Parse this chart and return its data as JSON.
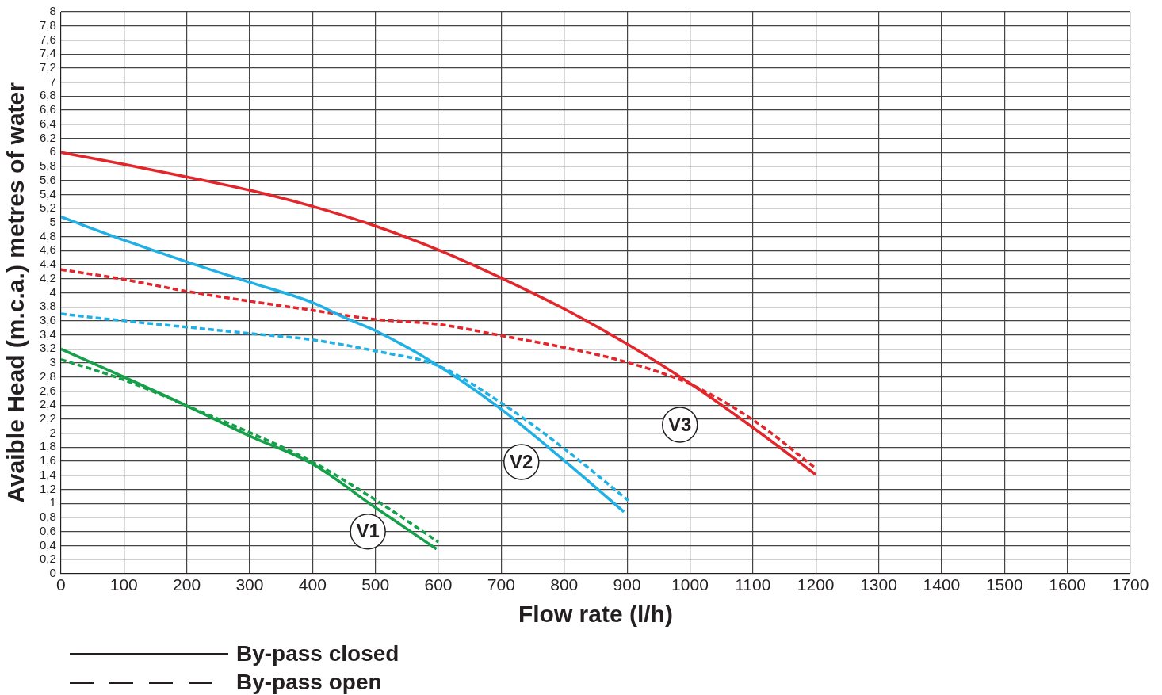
{
  "chart_data": {
    "type": "line",
    "xlabel": "Flow rate (l/h)",
    "ylabel": "Avaible Head (m.c.a.) metres of water",
    "xlim": [
      0,
      1700
    ],
    "xticks": [
      0,
      100,
      200,
      300,
      400,
      500,
      600,
      700,
      800,
      900,
      1000,
      1100,
      1200,
      1300,
      1400,
      1500,
      1600,
      1700
    ],
    "ylim": [
      0,
      8
    ],
    "yticks": [
      0,
      {
        "value": 0.2,
        "label": "0,2"
      },
      {
        "value": 0.4,
        "label": "0,4"
      },
      {
        "value": 0.6,
        "label": "0,6"
      },
      {
        "value": 0.8,
        "label": "0,8"
      },
      1,
      {
        "value": 1.2,
        "label": "1,2"
      },
      {
        "value": 1.4,
        "label": "1,4"
      },
      {
        "value": 1.6,
        "label": "1,6"
      },
      {
        "value": 1.8,
        "label": "1,8"
      },
      2,
      {
        "value": 2.2,
        "label": "2,2"
      },
      {
        "value": 2.4,
        "label": "2,4"
      },
      {
        "value": 2.6,
        "label": "2,6"
      },
      {
        "value": 2.8,
        "label": "2,8"
      },
      3,
      {
        "value": 3.2,
        "label": "3,2"
      },
      {
        "value": 3.4,
        "label": "3,4"
      },
      {
        "value": 3.6,
        "label": "3,6"
      },
      {
        "value": 3.8,
        "label": "3,8"
      },
      4,
      {
        "value": 4.2,
        "label": "4,2"
      },
      {
        "value": 4.4,
        "label": "4,4"
      },
      {
        "value": 4.6,
        "label": "4,6"
      },
      {
        "value": 4.8,
        "label": "4,8"
      },
      5,
      {
        "value": 5.2,
        "label": "5,2"
      },
      {
        "value": 5.4,
        "label": "5,4"
      },
      {
        "value": 5.6,
        "label": "5,6"
      },
      {
        "value": 5.8,
        "label": "5,8"
      },
      6,
      {
        "value": 6.2,
        "label": "6,2"
      },
      {
        "value": 6.4,
        "label": "6,4"
      },
      {
        "value": 6.6,
        "label": "6,6"
      },
      {
        "value": 6.8,
        "label": "6,8"
      },
      7,
      {
        "value": 7.2,
        "label": "7,2"
      },
      {
        "value": 7.4,
        "label": "7,4"
      },
      {
        "value": 7.6,
        "label": "7,6"
      },
      {
        "value": 7.8,
        "label": "7,8"
      },
      8
    ],
    "grid": true,
    "marker": "none",
    "series": [
      {
        "color": "#16a04a",
        "line_style": "solid",
        "x": [
          0,
          100,
          200,
          300,
          400,
          500,
          597
        ],
        "values": [
          3.2,
          2.8,
          2.39,
          1.96,
          1.56,
          0.94,
          0.35
        ]
      },
      {
        "color": "#16a04a",
        "line_style": "dashed",
        "x": [
          0,
          100,
          200,
          300,
          400,
          500,
          600
        ],
        "values": [
          3.05,
          2.76,
          2.39,
          2.01,
          1.59,
          1.05,
          0.45
        ]
      },
      {
        "color": "#1fb0e6",
        "line_style": "solid",
        "x": [
          0,
          100,
          200,
          300,
          400,
          450,
          500,
          600,
          700,
          800,
          895
        ],
        "values": [
          5.08,
          4.75,
          4.44,
          4.15,
          3.86,
          3.65,
          3.46,
          2.96,
          2.34,
          1.61,
          0.88
        ]
      },
      {
        "color": "#1fb0e6",
        "line_style": "dashed",
        "x": [
          0,
          100,
          200,
          300,
          400,
          500,
          600,
          700,
          800,
          902
        ],
        "values": [
          3.7,
          3.6,
          3.51,
          3.42,
          3.33,
          3.17,
          2.96,
          2.43,
          1.78,
          1.04
        ]
      },
      {
        "color": "#e3262b",
        "line_style": "solid",
        "x": [
          0,
          100,
          200,
          300,
          400,
          500,
          600,
          700,
          800,
          900,
          1000,
          1100,
          1200
        ],
        "values": [
          6.0,
          5.83,
          5.65,
          5.46,
          5.23,
          4.95,
          4.61,
          4.21,
          3.77,
          3.27,
          2.71,
          2.08,
          1.41
        ]
      },
      {
        "color": "#e3262b",
        "line_style": "dashed",
        "x": [
          0,
          100,
          200,
          300,
          400,
          500,
          600,
          700,
          800,
          900,
          1000,
          1100,
          1200
        ],
        "values": [
          4.33,
          4.19,
          4.02,
          3.88,
          3.75,
          3.62,
          3.55,
          3.39,
          3.22,
          3.01,
          2.7,
          2.19,
          1.5
        ]
      }
    ],
    "annotations": [
      {
        "text": "V1",
        "x": 488,
        "y": 0.6
      },
      {
        "text": "V2",
        "x": 732,
        "y": 1.59
      },
      {
        "text": "V3",
        "x": 984,
        "y": 2.12
      },
      "By-pass closed",
      "By-pass open"
    ]
  }
}
